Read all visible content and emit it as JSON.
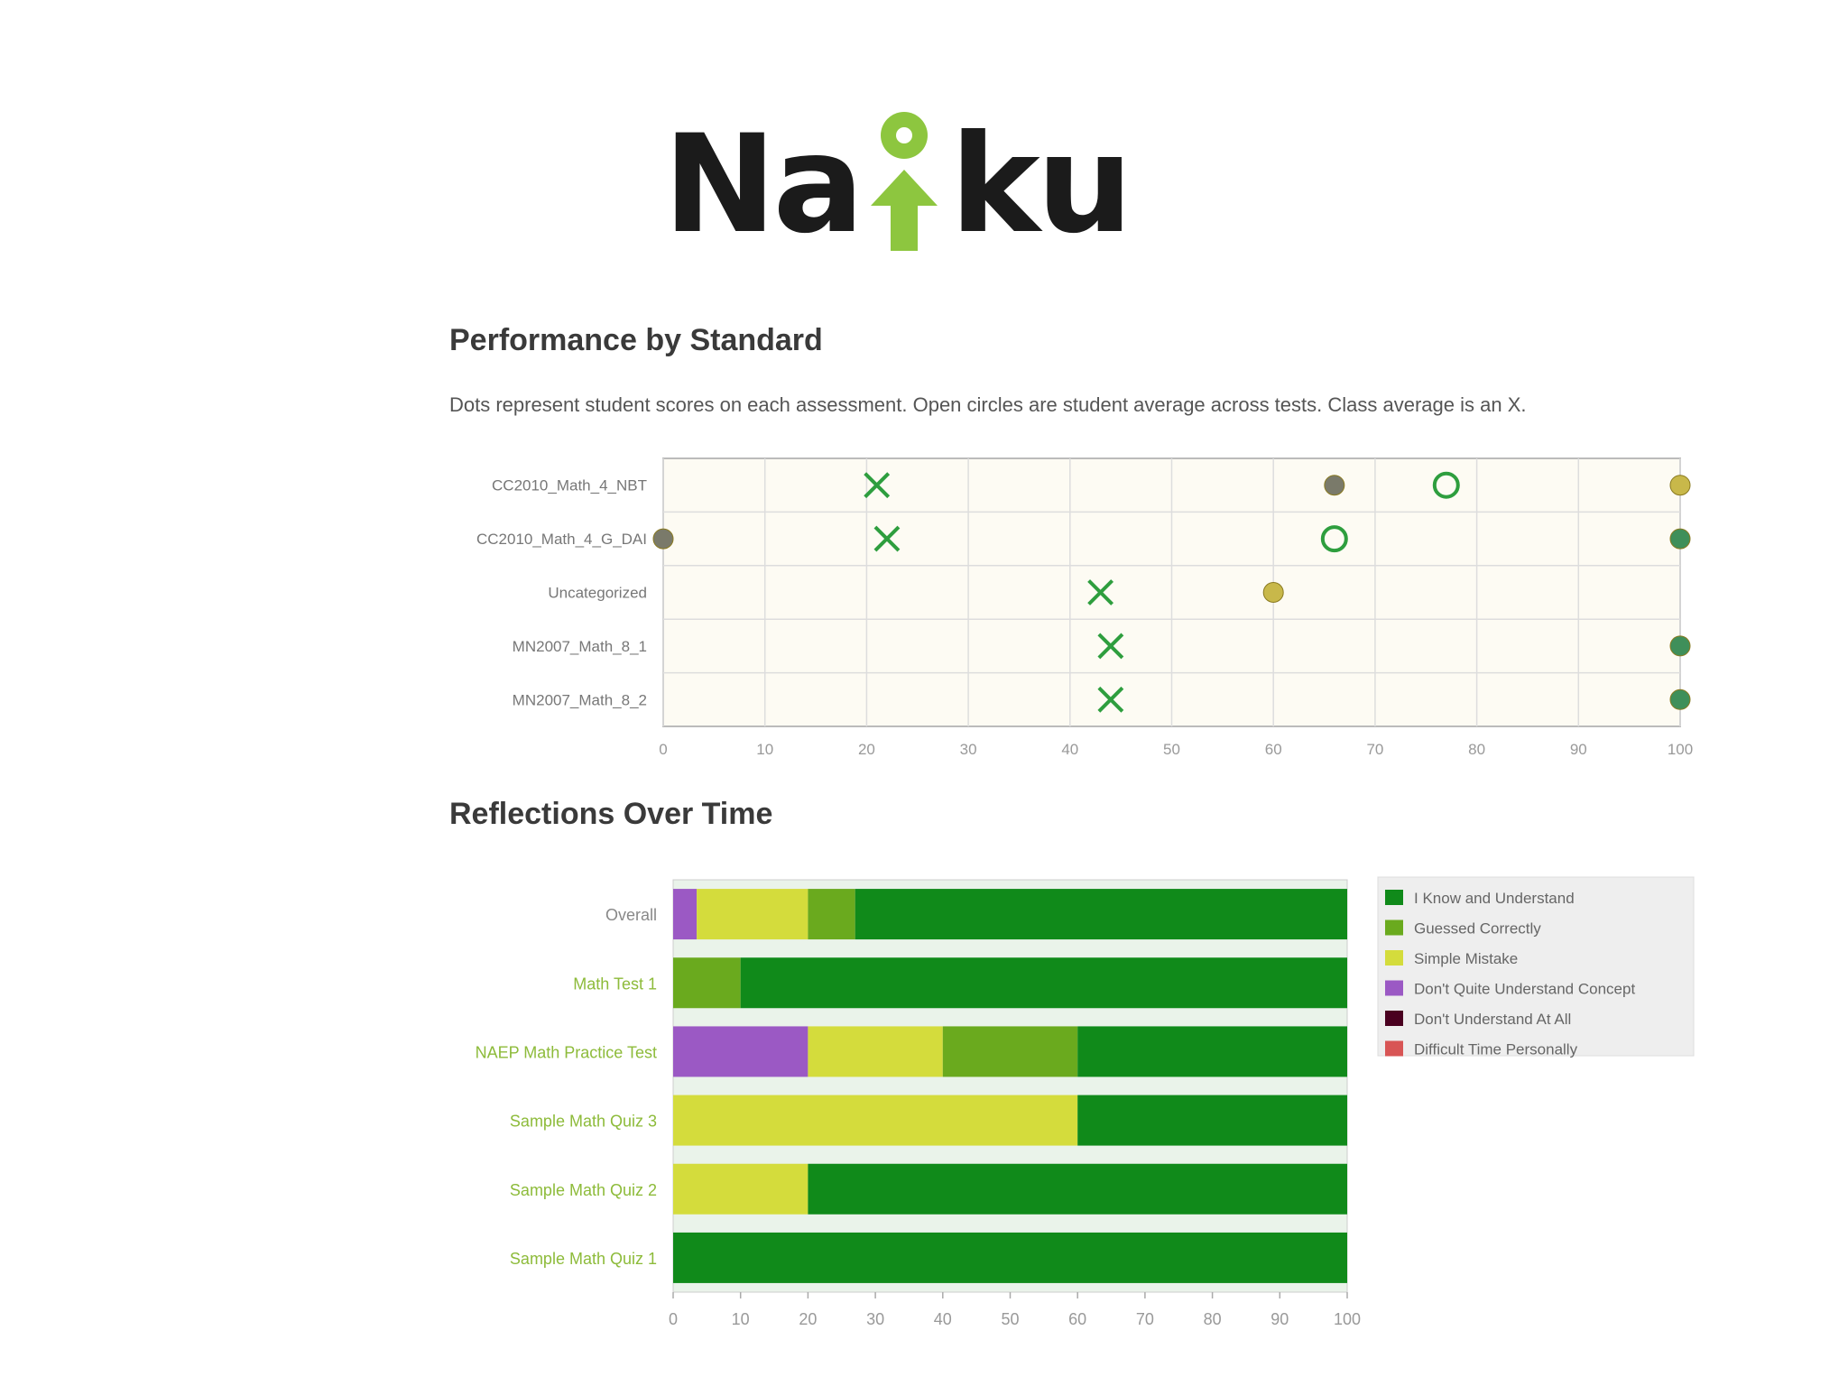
{
  "logo": {
    "text_left": "Na",
    "text_right": "ku",
    "accent_color": "#8dc63f",
    "icon": "person-arrow-icon"
  },
  "performance": {
    "title": "Performance by Standard",
    "description": "Dots represent student scores on each assessment. Open circles are student average across tests. Class average is an X."
  },
  "reflections": {
    "title": "Reflections Over Time"
  },
  "chart_data": [
    {
      "type": "scatter",
      "title": "Performance by Standard",
      "categories": [
        "CC2010_Math_4_NBT",
        "CC2010_Math_4_G_DAI",
        "Uncategorized",
        "MN2007_Math_8_1",
        "MN2007_Math_8_2"
      ],
      "xlim": [
        0,
        100
      ],
      "xticks": [
        "0",
        "10",
        "20",
        "30",
        "40",
        "50",
        "60",
        "70",
        "80",
        "90",
        "100"
      ],
      "grid": true,
      "series": [
        {
          "marker": "x",
          "color": "#2e9e3e",
          "points": [
            [
              21,
              0
            ],
            [
              22,
              1
            ],
            [
              43,
              2
            ],
            [
              44,
              3
            ],
            [
              44,
              4
            ]
          ]
        },
        {
          "marker": "open-circle",
          "color": "#2e9e3e",
          "points": [
            [
              77,
              0
            ],
            [
              66,
              1
            ]
          ]
        },
        {
          "marker": "dot",
          "color": "#7a7a6a",
          "points": [
            [
              66,
              0
            ],
            [
              0,
              1
            ]
          ]
        },
        {
          "marker": "dot",
          "color": "#c8b84a",
          "points": [
            [
              60,
              2
            ],
            [
              100,
              0
            ]
          ]
        },
        {
          "marker": "dot",
          "color": "#3f8f5a",
          "points": [
            [
              100,
              1
            ],
            [
              100,
              3
            ],
            [
              100,
              4
            ]
          ]
        }
      ]
    },
    {
      "type": "bar",
      "orientation": "horizontal",
      "stacked": true,
      "title": "Reflections Over Time",
      "categories": [
        "Overall",
        "Math Test 1",
        "NAEP Math Practice Test",
        "Sample Math Quiz 3",
        "Sample Math Quiz 2",
        "Sample Math Quiz 1"
      ],
      "xlim": [
        0,
        100
      ],
      "xticks": [
        "0",
        "10",
        "20",
        "30",
        "40",
        "50",
        "60",
        "70",
        "80",
        "90",
        "100"
      ],
      "legend_position": "right",
      "series": [
        {
          "name": "Don't Quite Understand Concept",
          "color": "#9b59c4",
          "values": [
            3.5,
            0,
            20,
            0,
            0,
            0
          ]
        },
        {
          "name": "Simple Mistake",
          "color": "#d4dc3c",
          "values": [
            16.5,
            0,
            20,
            60,
            20,
            0
          ]
        },
        {
          "name": "Guessed Correctly",
          "color": "#6aaa1e",
          "values": [
            7,
            10,
            20,
            0,
            0,
            0
          ]
        },
        {
          "name": "I Know and Understand",
          "color": "#108a1a",
          "values": [
            73,
            90,
            40,
            40,
            80,
            100
          ]
        }
      ],
      "legend": [
        {
          "name": "I Know and Understand",
          "color": "#108a1a"
        },
        {
          "name": "Guessed Correctly",
          "color": "#6aaa1e"
        },
        {
          "name": "Simple Mistake",
          "color": "#d4dc3c"
        },
        {
          "name": "Don't Quite Understand Concept",
          "color": "#9b59c4"
        },
        {
          "name": "Don't Understand At All",
          "color": "#4a0020"
        },
        {
          "name": "Difficult Time Personally",
          "color": "#d85555"
        }
      ]
    }
  ]
}
